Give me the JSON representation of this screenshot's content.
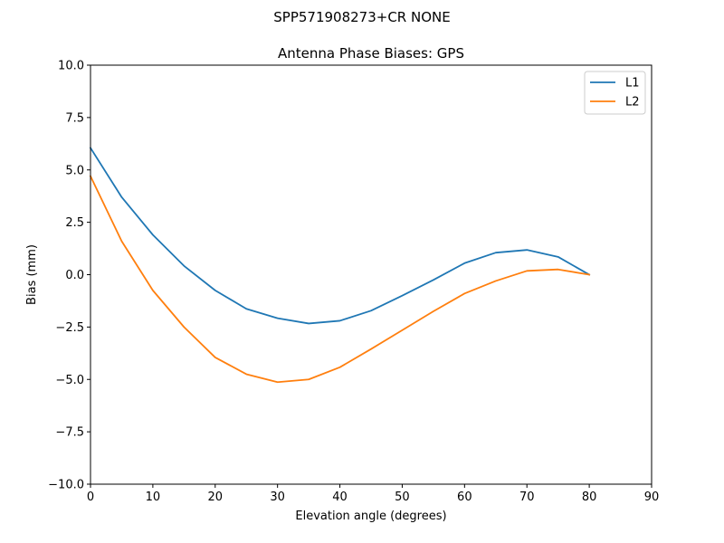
{
  "chart_data": {
    "type": "line",
    "suptitle": "SPP571908273+CR NONE",
    "title": "Antenna Phase Biases: GPS",
    "xlabel": "Elevation angle (degrees)",
    "ylabel": "Bias (mm)",
    "xlim": [
      0,
      90
    ],
    "ylim": [
      -10,
      10
    ],
    "xticks": [
      0,
      10,
      20,
      30,
      40,
      50,
      60,
      70,
      80,
      90
    ],
    "yticks": [
      -10.0,
      -7.5,
      -5.0,
      -2.5,
      0.0,
      2.5,
      5.0,
      7.5,
      10.0
    ],
    "xtick_labels": [
      "0",
      "10",
      "20",
      "30",
      "40",
      "50",
      "60",
      "70",
      "80",
      "90"
    ],
    "ytick_labels": [
      "−10.0",
      "−7.5",
      "−5.0",
      "−2.5",
      "0.0",
      "2.5",
      "5.0",
      "7.5",
      "10.0"
    ],
    "grid": false,
    "legend_position": "top-right",
    "x": [
      0,
      5,
      10,
      15,
      20,
      25,
      30,
      35,
      40,
      45,
      50,
      55,
      60,
      65,
      70,
      75,
      80
    ],
    "series": [
      {
        "name": "L1",
        "color": "#1f77b4",
        "values": [
          6.05,
          3.7,
          1.9,
          0.42,
          -0.75,
          -1.63,
          -2.08,
          -2.33,
          -2.2,
          -1.72,
          -1.0,
          -0.25,
          0.55,
          1.05,
          1.18,
          0.85,
          0.0
        ]
      },
      {
        "name": "L2",
        "color": "#ff7f0e",
        "values": [
          4.7,
          1.6,
          -0.75,
          -2.5,
          -3.95,
          -4.75,
          -5.13,
          -5.0,
          -4.42,
          -3.55,
          -2.65,
          -1.75,
          -0.9,
          -0.3,
          0.18,
          0.25,
          0.0
        ]
      }
    ]
  }
}
